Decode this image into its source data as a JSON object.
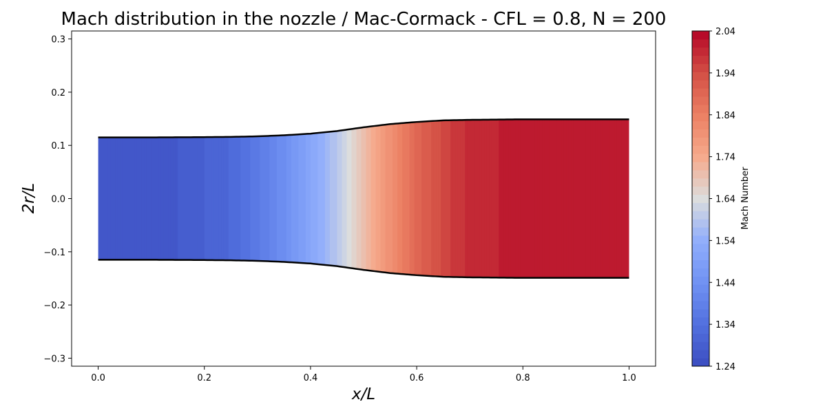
{
  "chart_data": {
    "type": "heatmap",
    "title": "Mach distribution in the nozzle / Mac-Cormack - CFL = 0.8, N = 200",
    "xlabel": "x/L",
    "ylabel": "2r/L",
    "xlim": [
      -0.05,
      1.05
    ],
    "ylim": [
      -0.315,
      0.315
    ],
    "xticks": [
      0.0,
      0.2,
      0.4,
      0.6,
      0.8,
      1.0
    ],
    "xtick_labels": [
      "0.0",
      "0.2",
      "0.4",
      "0.6",
      "0.8",
      "1.0"
    ],
    "yticks": [
      0.3,
      0.2,
      0.1,
      0.0,
      -0.1,
      -0.2,
      -0.3
    ],
    "ytick_labels": [
      "0.3",
      "0.2",
      "0.1",
      "0.0",
      "−0.1",
      "−0.2",
      "−0.3"
    ],
    "colormap": "coolwarm",
    "grid": false,
    "colorbar": {
      "label": "Mach Number",
      "range": [
        1.24,
        2.04
      ],
      "ticks": [
        2.04,
        1.94,
        1.84,
        1.74,
        1.64,
        1.54,
        1.44,
        1.34,
        1.24
      ],
      "tick_labels": [
        "2.04",
        "1.94",
        "1.84",
        "1.74",
        "1.64",
        "1.54",
        "1.44",
        "1.34",
        "1.24"
      ],
      "levels": 41
    },
    "wall_contour": {
      "x": [
        0.0,
        0.1,
        0.2,
        0.25,
        0.3,
        0.35,
        0.4,
        0.45,
        0.5,
        0.55,
        0.6,
        0.65,
        0.7,
        0.8,
        0.9,
        1.0
      ],
      "r": [
        0.115,
        0.115,
        0.1155,
        0.116,
        0.117,
        0.119,
        0.122,
        0.127,
        0.134,
        0.14,
        0.144,
        0.147,
        0.148,
        0.149,
        0.149,
        0.149
      ]
    },
    "mach_profile": {
      "x": [
        0.0,
        0.1,
        0.18,
        0.25,
        0.3,
        0.35,
        0.4,
        0.45,
        0.47,
        0.5,
        0.55,
        0.6,
        0.65,
        0.7,
        0.8,
        0.9,
        1.0
      ],
      "mach": [
        1.26,
        1.26,
        1.29,
        1.32,
        1.37,
        1.43,
        1.51,
        1.59,
        1.63,
        1.7,
        1.8,
        1.89,
        1.95,
        1.99,
        2.01,
        2.01,
        2.01
      ]
    }
  }
}
